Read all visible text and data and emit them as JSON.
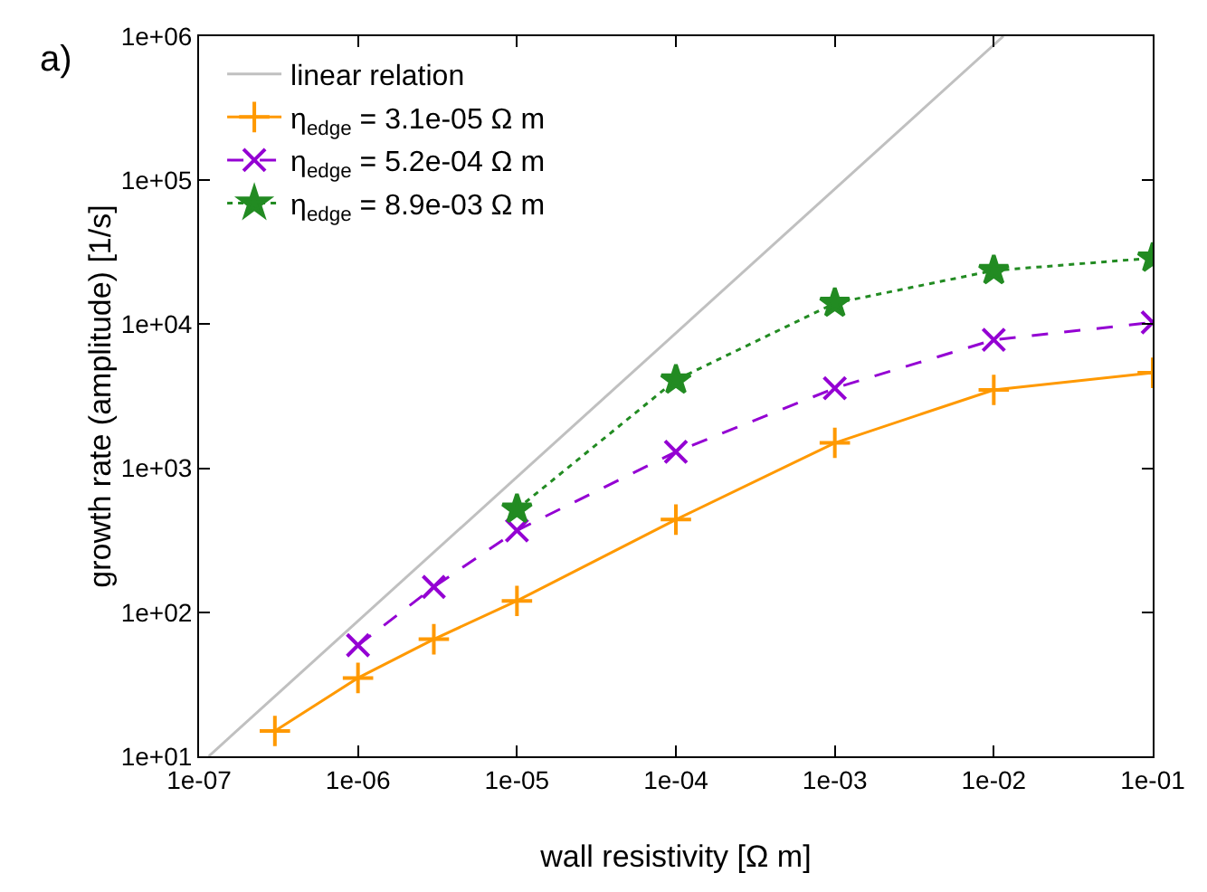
{
  "chart_data": {
    "type": "line",
    "xlabel": "wall resistivity [Ω m]",
    "ylabel": "growth rate (amplitude) [1/s]",
    "log": "xy",
    "grid": false,
    "legend": "top left",
    "annotations": [
      "a)"
    ],
    "xlim": [
      1e-07,
      0.1
    ],
    "ylim": [
      10,
      1000000
    ],
    "xticks": [
      {
        "value": 1e-07,
        "label": "1e-07"
      },
      {
        "value": 1e-06,
        "label": "1e-06"
      },
      {
        "value": 1e-05,
        "label": "1e-05"
      },
      {
        "value": 0.0001,
        "label": "1e-04"
      },
      {
        "value": 0.001,
        "label": "1e-03"
      },
      {
        "value": 0.01,
        "label": "1e-02"
      },
      {
        "value": 0.1,
        "label": "1e-01"
      }
    ],
    "yticks": [
      {
        "value": 10,
        "label": "1e+01"
      },
      {
        "value": 100,
        "label": "1e+02"
      },
      {
        "value": 1000,
        "label": "1e+03"
      },
      {
        "value": 10000,
        "label": "1e+04"
      },
      {
        "value": 100000,
        "label": "1e+05"
      },
      {
        "value": 1000000,
        "label": "1e+06"
      }
    ],
    "series": [
      {
        "name": "linear relation",
        "color": "#c0c0c0",
        "marker": "none",
        "line_style": "solid",
        "x": [
          1.15e-07,
          0.0115
        ],
        "values": [
          10,
          1000000
        ]
      },
      {
        "name": "η$_{edge}$ = 3.1e-05 Ω m",
        "color": "#ff9900",
        "marker": "cross",
        "line_style": "solid",
        "x": [
          3e-07,
          1e-06,
          3e-06,
          1e-05,
          0.0001,
          0.001,
          0.01,
          0.1
        ],
        "values": [
          15,
          35,
          65,
          120,
          440,
          1500,
          3500,
          4600
        ]
      },
      {
        "name": "η$_{edge}$ = 5.2e-04 Ω m",
        "color": "#9400d3",
        "marker": "x",
        "line_style": "dashed",
        "x": [
          1e-06,
          3e-06,
          1e-05,
          0.0001,
          0.001,
          0.01,
          0.1
        ],
        "values": [
          59,
          150,
          370,
          1300,
          3600,
          7800,
          10300
        ]
      },
      {
        "name": "η$_{edge}$ = 8.9e-03 Ω m",
        "color": "#228b22",
        "marker": "star",
        "line_style": "dotted",
        "x": [
          1e-05,
          0.0001,
          0.001,
          0.01,
          0.1
        ],
        "values": [
          520,
          4100,
          14000,
          23600,
          28800
        ]
      }
    ]
  }
}
